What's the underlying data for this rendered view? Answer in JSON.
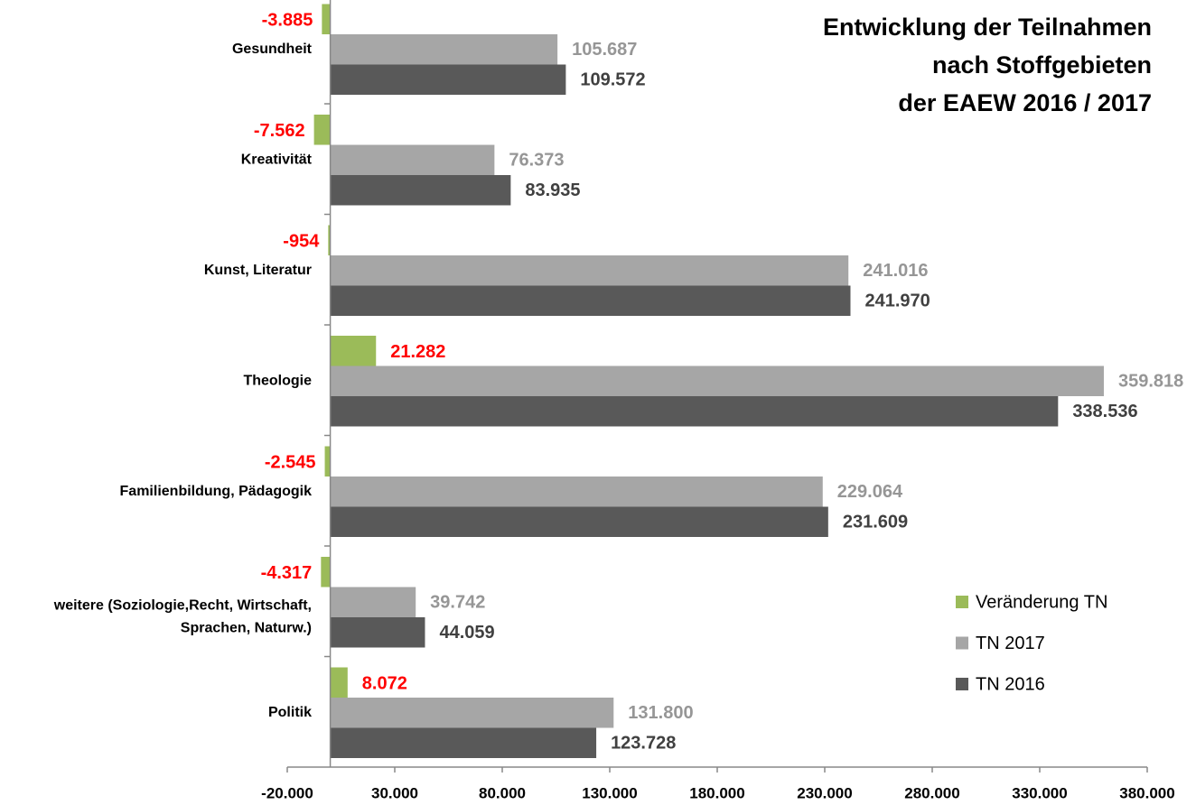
{
  "chart_data": {
    "type": "hbar",
    "title": "Entwicklung der Teilnahmen\nnach Stoffgebieten\nder EAEW 2016 / 2017",
    "categories": [
      "Gesundheit",
      "Kreativität",
      "Kunst, Literatur",
      "Theologie",
      "Familienbildung, Pädagogik",
      "weitere (Soziologie,Recht, Wirtschaft,\nSprachen, Naturw.)",
      "Politik"
    ],
    "series": [
      {
        "name": "Veränderung TN",
        "color": "#9bbb59",
        "label_color": "#ff0000",
        "values": [
          -3885,
          -7562,
          -954,
          21282,
          -2545,
          -4317,
          8072
        ],
        "value_labels": [
          "-3.885",
          "-7.562",
          "-954",
          "21.282",
          "-2.545",
          "-4.317",
          "8.072"
        ]
      },
      {
        "name": "TN 2017",
        "color": "#a6a6a6",
        "label_color": "#969696",
        "values": [
          105687,
          76373,
          241016,
          359818,
          229064,
          39742,
          131800
        ],
        "value_labels": [
          "105.687",
          "76.373",
          "241.016",
          "359.818",
          "229.064",
          "39.742",
          "131.800"
        ]
      },
      {
        "name": "TN 2016",
        "color": "#595959",
        "label_color": "#404040",
        "values": [
          109572,
          83935,
          241970,
          338536,
          231609,
          44059,
          123728
        ],
        "value_labels": [
          "109.572",
          "83.935",
          "241.970",
          "338.536",
          "231.609",
          "44.059",
          "123.728"
        ]
      }
    ],
    "xlim": [
      -20000,
      380000
    ],
    "xticks": [
      {
        "value": -20000,
        "label": "-20.000"
      },
      {
        "value": 30000,
        "label": "30.000"
      },
      {
        "value": 80000,
        "label": "80.000"
      },
      {
        "value": 130000,
        "label": "130.000"
      },
      {
        "value": 180000,
        "label": "180.000"
      },
      {
        "value": 230000,
        "label": "230.000"
      },
      {
        "value": 280000,
        "label": "280.000"
      },
      {
        "value": 330000,
        "label": "330.000"
      },
      {
        "value": 380000,
        "label": "380.000"
      }
    ],
    "grid": false,
    "legend": "right"
  }
}
